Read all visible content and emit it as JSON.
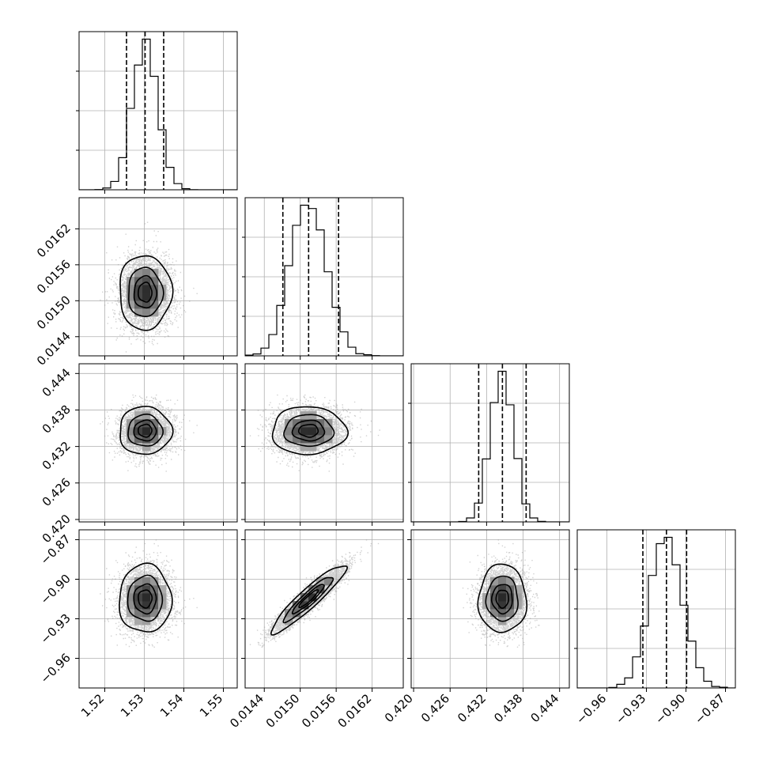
{
  "chart_data": {
    "type": "corner",
    "parameters": [
      {
        "ticks": [
          1.52,
          1.53,
          1.54,
          1.55
        ],
        "tick_labels": [
          "1.52",
          "1.53",
          "1.54",
          "1.55"
        ],
        "range": [
          1.5135,
          1.5535
        ],
        "mean": 1.5302,
        "sd": 0.0032,
        "quantiles": [
          1.5255,
          1.5302,
          1.5349
        ]
      },
      {
        "ticks": [
          0.0144,
          0.015,
          0.0156,
          0.0162
        ],
        "tick_labels": [
          "0.0144",
          "0.0150",
          "0.0156",
          "0.0162"
        ],
        "range": [
          0.01408,
          0.01672
        ],
        "mean": 0.01514,
        "sd": 0.0003,
        "quantiles": [
          0.01471,
          0.01514,
          0.01564
        ]
      },
      {
        "ticks": [
          0.42,
          0.426,
          0.432,
          0.438,
          0.444
        ],
        "tick_labels": [
          "0.420",
          "0.426",
          "0.432",
          "0.438",
          "0.444"
        ],
        "range": [
          0.4196,
          0.4456
        ],
        "mean": 0.4346,
        "sd": 0.0019,
        "quantiles": [
          0.4307,
          0.4346,
          0.4385
        ]
      },
      {
        "ticks": [
          -0.96,
          -0.93,
          -0.9,
          -0.87
        ],
        "tick_labels": [
          "−0.96",
          "−0.93",
          "−0.90",
          "−0.87"
        ],
        "range": [
          -0.9825,
          -0.8625
        ],
        "mean": -0.9148,
        "sd": 0.0125,
        "quantiles": [
          -0.9327,
          -0.9148,
          -0.8995
        ]
      }
    ],
    "correlations": [
      [
        1,
        0,
        0,
        0
      ],
      [
        0,
        1,
        0,
        0.93
      ],
      [
        0,
        0,
        1,
        0
      ],
      [
        0,
        0.93,
        0,
        1
      ]
    ],
    "histogram_bins": 20,
    "contour_levels_sigma": [
      0.5,
      1.0,
      1.5,
      2.0
    ],
    "quantile_line_style": "dashed",
    "grid": true,
    "colors": {
      "lines": "#000000",
      "points": "#9a9a9a",
      "grid": "#b0b0b0"
    }
  }
}
